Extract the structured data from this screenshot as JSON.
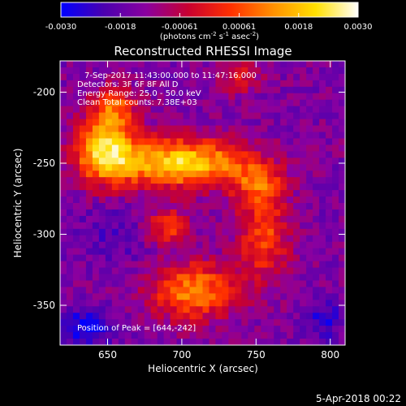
{
  "chart_data": {
    "type": "heatmap",
    "title": "Reconstructed RHESSI Image",
    "xlabel": "Heliocentric X (arcsec)",
    "ylabel": "Heliocentric Y (arcsec)",
    "xlim": [
      618,
      810
    ],
    "ylim": [
      -378,
      -178
    ],
    "x_ticks": [
      650,
      700,
      750,
      800
    ],
    "y_ticks": [
      -200,
      -250,
      -300,
      -350
    ],
    "colorbar": {
      "min": -0.003,
      "max": 0.003,
      "ticks": [
        "-0.0030",
        "-0.0018",
        "-0.00061",
        "0.00061",
        "0.0018",
        "0.0030"
      ],
      "label": "(photons cm",
      "label_sup1": "-2",
      "label_mid": " s",
      "label_sup2": "-1",
      "label_mid2": " asec",
      "label_sup3": "-2",
      "label_end": ")",
      "colors": [
        "#0000ff",
        "#4a00b0",
        "#8a00a0",
        "#c80030",
        "#ff3000",
        "#ff9000",
        "#ffe000",
        "#ffffff"
      ]
    },
    "info_lines": [
      "7-Sep-2017 11:43:00.000 to 11:47:16.000",
      "Detectors: 3F 6F 8F All D",
      "Energy Range: 25.0 - 50.0 keV",
      "Clean     Total counts: 7.38E+03"
    ],
    "peak_label": "Position of Peak = [644,-242]",
    "peak": [
      644,
      -242
    ],
    "sources": [
      {
        "x": 700,
        "y": -250,
        "sx": 32,
        "sy": 12,
        "amp": 1.0
      },
      {
        "x": 648,
        "y": -240,
        "sx": 14,
        "sy": 16,
        "amp": 0.95
      },
      {
        "x": 655,
        "y": -210,
        "sx": 10,
        "sy": 10,
        "amp": 0.55
      },
      {
        "x": 690,
        "y": -295,
        "sx": 10,
        "sy": 9,
        "amp": 0.55
      },
      {
        "x": 708,
        "y": -340,
        "sx": 20,
        "sy": 14,
        "amp": 0.75
      },
      {
        "x": 755,
        "y": -300,
        "sx": 12,
        "sy": 22,
        "amp": 0.55
      },
      {
        "x": 752,
        "y": -265,
        "sx": 12,
        "sy": 10,
        "amp": 0.45
      },
      {
        "x": 740,
        "y": -190,
        "sx": 10,
        "sy": 8,
        "amp": 0.35
      }
    ],
    "negative_regions": [
      {
        "x": 635,
        "y": -365,
        "sx": 14,
        "sy": 10,
        "amp": 1.0
      },
      {
        "x": 795,
        "y": -360,
        "sx": 10,
        "sy": 10,
        "amp": 0.8
      },
      {
        "x": 655,
        "y": -300,
        "sx": 20,
        "sy": 14,
        "amp": 0.45
      }
    ]
  },
  "footer_date": "5-Apr-2018 00:22"
}
